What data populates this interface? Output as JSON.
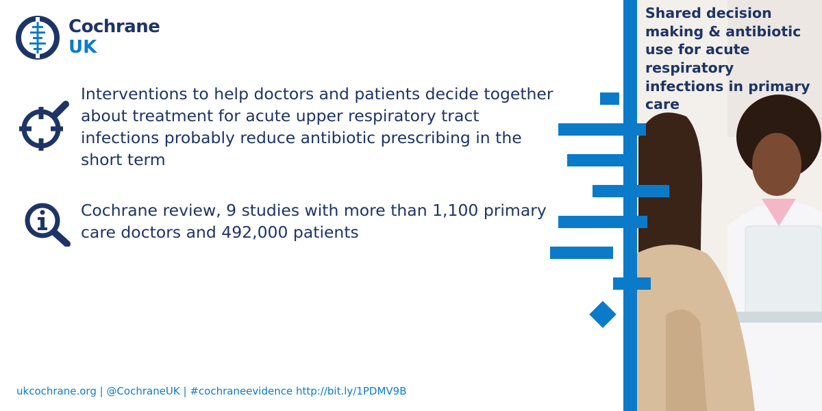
{
  "brand": {
    "name_line1": "Cochrane",
    "name_line2": "UK",
    "colors": {
      "navy": "#1d3466",
      "blue": "#0b7bc9"
    }
  },
  "headline": "Shared decision making & antibiotic use for acute respiratory infections in primary care",
  "statement": {
    "icon": "target-magnifier-icon",
    "text": "Interventions to help doctors and patients decide together about treatment for acute upper respiratory tract infections probably reduce antibiotic prescribing in the short term"
  },
  "review": {
    "icon": "info-magnifier-icon",
    "text": "Cochrane review, 9 studies with more than 1,100 primary care doctors and 492,000 patients"
  },
  "footer": {
    "text": "ukcochrane.org | @CochraneUK | #cochraneevidence http://bit.ly/1PDMV9B"
  },
  "photo": {
    "subject": "doctor-and-patient-photo"
  }
}
